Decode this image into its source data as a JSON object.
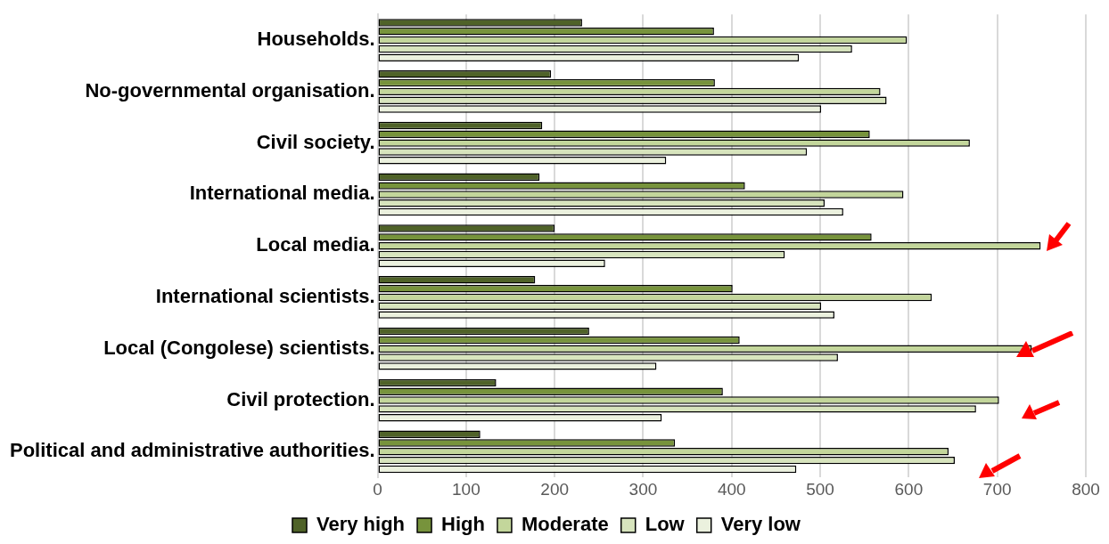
{
  "chart_data": {
    "type": "bar",
    "orientation": "horizontal",
    "categories": [
      "Households.",
      "No-governmental organisation.",
      "Civil society.",
      "International media.",
      "Local media.",
      "International scientists.",
      "Local (Congolese) scientists.",
      "Civil protection.",
      "Political and administrative authorities."
    ],
    "series": [
      {
        "name": "Very high",
        "color": "#4f6228",
        "values": [
          231,
          196,
          186,
          183,
          200,
          178,
          239,
          134,
          116
        ]
      },
      {
        "name": "High",
        "color": "#77933c",
        "values": [
          380,
          381,
          556,
          415,
          558,
          401,
          409,
          390,
          336
        ]
      },
      {
        "name": "Moderate",
        "color": "#c3d69b",
        "values": [
          598,
          568,
          669,
          594,
          749,
          626,
          739,
          702,
          645
        ]
      },
      {
        "name": "Low",
        "color": "#d7e4bd",
        "values": [
          536,
          575,
          485,
          505,
          460,
          501,
          520,
          676,
          652
        ]
      },
      {
        "name": "Very low",
        "color": "#ebf1de",
        "values": [
          476,
          501,
          326,
          526,
          257,
          516,
          315,
          321,
          473
        ]
      }
    ],
    "xlim": [
      0,
      800
    ],
    "xticks": [
      0,
      100,
      200,
      300,
      400,
      500,
      600,
      700,
      800
    ],
    "grid": "x",
    "legend": "bottom"
  }
}
